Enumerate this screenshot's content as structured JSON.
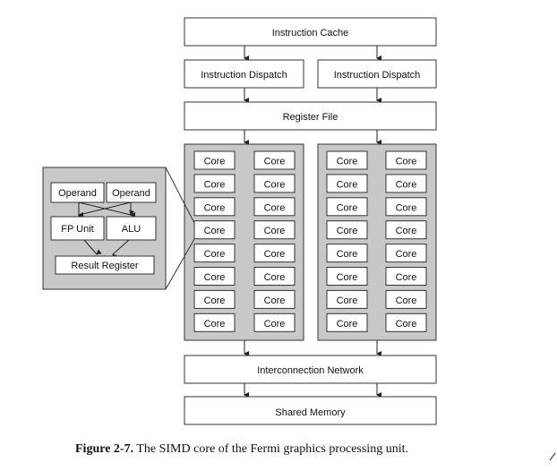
{
  "diagram": {
    "instruction_cache": "Instruction Cache",
    "dispatch": [
      "Instruction Dispatch",
      "Instruction Dispatch"
    ],
    "register_file": "Register File",
    "core_label": "Core",
    "core_columns_per_block": 2,
    "core_rows": 8,
    "interconnect": "Interconnection Network",
    "shared_memory": "Shared Memory",
    "detail": {
      "operands": [
        "Operand",
        "Operand"
      ],
      "units": [
        "FP Unit",
        "ALU"
      ],
      "result": "Result Register"
    },
    "colors": {
      "block_fill": "#c8c8c8",
      "box_fill": "#ffffff",
      "stroke": "#333333"
    }
  },
  "caption": {
    "label": "Figure 2-7.",
    "text": "The SIMD core of the Fermi graphics processing unit."
  }
}
